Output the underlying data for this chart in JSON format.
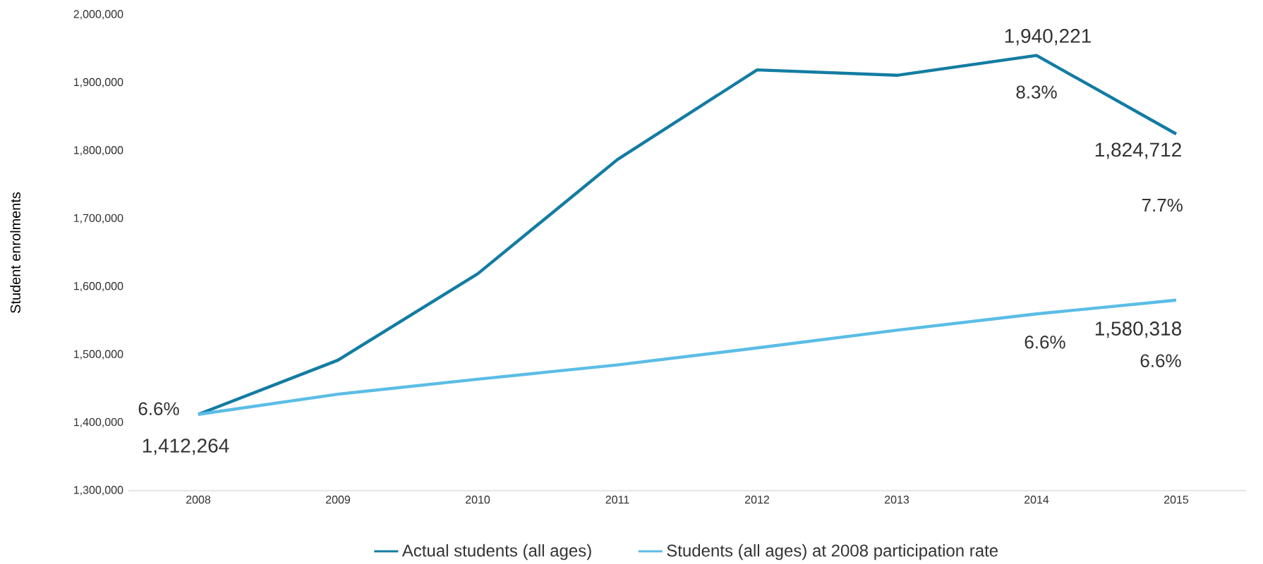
{
  "chart_data": {
    "type": "line",
    "ylabel": "Student enrolments",
    "categories": [
      "2008",
      "2009",
      "2010",
      "2011",
      "2012",
      "2013",
      "2014",
      "2015"
    ],
    "series": [
      {
        "name": "Actual students (all ages)",
        "color": "#137ca3",
        "values": [
          1412264,
          1492000,
          1619000,
          1787000,
          1919000,
          1911000,
          1940221,
          1824712
        ],
        "value_labels": [
          "1,412,264",
          null,
          null,
          null,
          null,
          null,
          "1,940,221",
          "1,824,712"
        ]
      },
      {
        "name": "Students (all ages) at 2008 participation rate",
        "color": "#5bbde6",
        "values": [
          1412264,
          1442000,
          1464000,
          1485000,
          1510000,
          1536000,
          1560000,
          1580318
        ],
        "value_labels": [
          null,
          null,
          null,
          null,
          null,
          null,
          null,
          "1,580,318"
        ]
      }
    ],
    "annotations": [
      {
        "text": "6.6%",
        "x": "2008",
        "y": 1412264
      },
      {
        "text": "8.3%",
        "x": "2014",
        "y": 1940221
      },
      "7.7%",
      {
        "text": "6.6%",
        "x": "2014",
        "y": 1560000
      },
      {
        "text": "6.6%",
        "x": "2015",
        "y": 1580318
      }
    ],
    "ylim": [
      1300000,
      2000000
    ],
    "yticks": [
      {
        "value": 1300000,
        "label": "1,300,000"
      },
      {
        "value": 1400000,
        "label": "1,400,000"
      },
      {
        "value": 1500000,
        "label": "1,500,000"
      },
      {
        "value": 1600000,
        "label": "1,600,000"
      },
      {
        "value": 1700000,
        "label": "1,700,000"
      },
      {
        "value": 1800000,
        "label": "1,800,000"
      },
      {
        "value": 1900000,
        "label": "1,900,000"
      },
      {
        "value": 2000000,
        "label": "2,000,000"
      }
    ],
    "legend": "bottom",
    "grid": false,
    "marker": "none",
    "line_style": "solid"
  }
}
